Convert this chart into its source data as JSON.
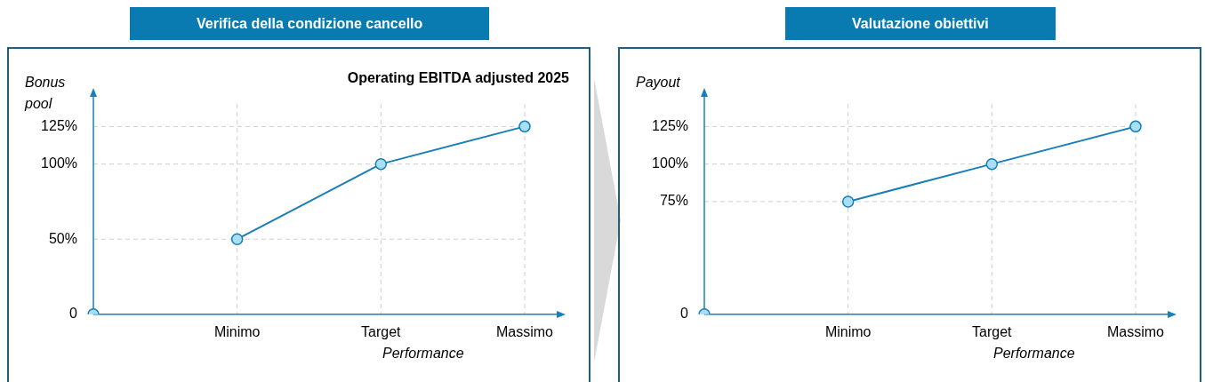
{
  "chart_data": [
    {
      "type": "line",
      "title": "Verifica della condizione cancello",
      "subtitle": "Operating EBITDA adjusted 2025",
      "ylabel": "Bonus pool",
      "xlabel": "Performance",
      "categories": [
        null,
        "Minimo",
        "Target",
        "Massimo"
      ],
      "ylim": [
        0,
        140
      ],
      "yticks": [
        {
          "value": 0,
          "label": "0"
        },
        {
          "value": 50,
          "label": "50%"
        },
        {
          "value": 100,
          "label": "100%"
        },
        {
          "value": 125,
          "label": "125%"
        }
      ],
      "grid": true,
      "marker": "circle",
      "legend": false,
      "series": [
        {
          "type": "scatter",
          "color": "#1a7fb5",
          "values": [
            0,
            null,
            null,
            null
          ]
        },
        {
          "type": "line",
          "color": "#1a7fb5",
          "values": [
            null,
            50,
            100,
            125
          ]
        }
      ]
    },
    {
      "type": "line",
      "title": "Valutazione obiettivi",
      "ylabel": "Payout",
      "xlabel": "Performance",
      "categories": [
        null,
        "Minimo",
        "Target",
        "Massimo"
      ],
      "ylim": [
        0,
        140
      ],
      "yticks": [
        {
          "value": 0,
          "label": "0"
        },
        {
          "value": 75,
          "label": "75%"
        },
        {
          "value": 100,
          "label": "100%"
        },
        {
          "value": 125,
          "label": "125%"
        }
      ],
      "grid": true,
      "marker": "circle",
      "legend": false,
      "series": [
        {
          "type": "scatter",
          "color": "#1a7fb5",
          "values": [
            0,
            null,
            null,
            null
          ]
        },
        {
          "type": "line",
          "color": "#1a7fb5",
          "values": [
            null,
            75,
            100,
            125
          ]
        }
      ]
    }
  ]
}
